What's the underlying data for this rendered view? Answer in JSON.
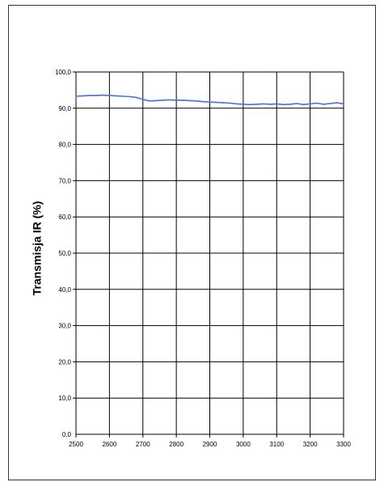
{
  "chart_data": {
    "type": "line",
    "title": "",
    "xlabel": "",
    "ylabel": "Transmisja IR (%)",
    "xlim": [
      2500,
      3300
    ],
    "ylim": [
      0,
      100
    ],
    "grid": true,
    "x_ticks": [
      "2500",
      "2600",
      "2700",
      "2800",
      "2900",
      "3000",
      "3100",
      "3200",
      "3300"
    ],
    "y_ticks": [
      "0,0",
      "10,0",
      "20,0",
      "30,0",
      "40,0",
      "50,0",
      "60,0",
      "70,0",
      "80,0",
      "90,0",
      "100,0"
    ],
    "series": [
      {
        "color": "#4a6fe3",
        "x": [
          2500,
          2520,
          2540,
          2560,
          2580,
          2600,
          2620,
          2640,
          2660,
          2680,
          2700,
          2720,
          2740,
          2760,
          2780,
          2800,
          2820,
          2840,
          2860,
          2880,
          2900,
          2920,
          2940,
          2960,
          2980,
          3000,
          3020,
          3040,
          3060,
          3080,
          3100,
          3120,
          3140,
          3160,
          3180,
          3200,
          3220,
          3240,
          3260,
          3280,
          3300
        ],
        "y": [
          93.3,
          93.4,
          93.5,
          93.5,
          93.6,
          93.5,
          93.4,
          93.3,
          93.2,
          93.0,
          92.4,
          92.0,
          92.1,
          92.2,
          92.3,
          92.2,
          92.2,
          92.1,
          92.0,
          91.8,
          91.7,
          91.6,
          91.5,
          91.4,
          91.2,
          91.1,
          91.0,
          91.1,
          91.2,
          91.1,
          91.2,
          91.0,
          91.1,
          91.3,
          91.0,
          91.2,
          91.4,
          91.1,
          91.3,
          91.5,
          91.2
        ]
      }
    ]
  }
}
